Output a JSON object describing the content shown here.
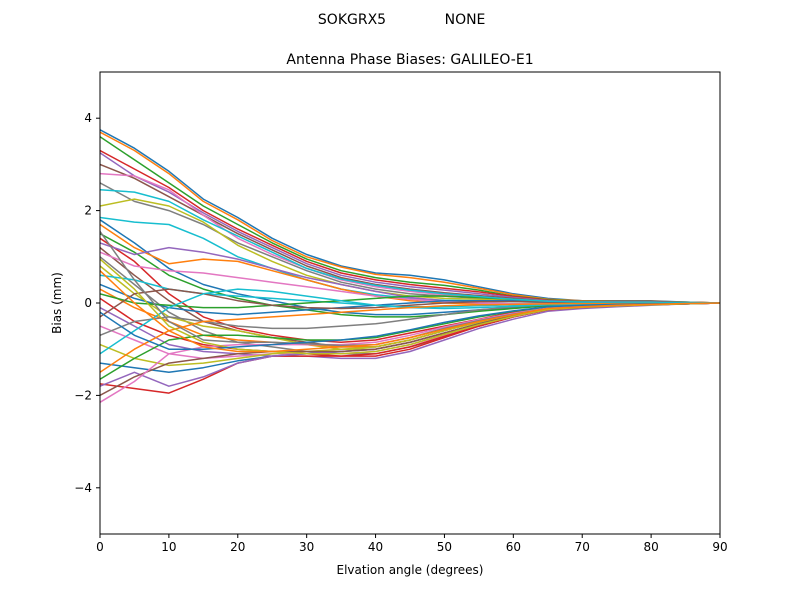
{
  "suptitle": {
    "left": "SOKGRX5",
    "right": "NONE"
  },
  "chart_data": {
    "type": "line",
    "title": "Antenna Phase Biases: GALILEO-E1",
    "xlabel": "Elvation angle (degrees)",
    "ylabel": "Bias (mm)",
    "xlim": [
      0,
      90
    ],
    "ylim": [
      -5,
      5
    ],
    "xticks": [
      0,
      10,
      20,
      30,
      40,
      50,
      60,
      70,
      80,
      90
    ],
    "xtick_labels": [
      "0",
      "10",
      "20",
      "30",
      "40",
      "50",
      "60",
      "70",
      "80",
      "90"
    ],
    "yticks": [
      -4,
      -2,
      0,
      2,
      4
    ],
    "ytick_labels": [
      "−4",
      "−2",
      "0",
      "2",
      "4"
    ],
    "grid": false,
    "legend": "none",
    "palette": [
      "#1f77b4",
      "#ff7f0e",
      "#2ca02c",
      "#d62728",
      "#9467bd",
      "#8c564b",
      "#e377c2",
      "#7f7f7f",
      "#bcbd22",
      "#17becf"
    ],
    "x": [
      0,
      5,
      10,
      15,
      20,
      25,
      30,
      35,
      40,
      45,
      50,
      55,
      60,
      65,
      70,
      75,
      80,
      85,
      90
    ],
    "series": [
      {
        "values": [
          3.75,
          3.35,
          2.85,
          2.25,
          1.85,
          1.4,
          1.05,
          0.8,
          0.65,
          0.6,
          0.5,
          0.35,
          0.2,
          0.1,
          0.05,
          0.05,
          0.05,
          0.02,
          0.0
        ]
      },
      {
        "values": [
          3.7,
          3.3,
          2.8,
          2.2,
          1.8,
          1.35,
          1.0,
          0.78,
          0.62,
          0.55,
          0.45,
          0.32,
          0.18,
          0.08,
          0.05,
          0.04,
          0.04,
          0.02,
          0.0
        ]
      },
      {
        "values": [
          3.6,
          3.1,
          2.6,
          2.1,
          1.7,
          1.3,
          0.95,
          0.7,
          0.55,
          0.45,
          0.38,
          0.28,
          0.15,
          0.07,
          0.04,
          0.03,
          0.03,
          0.02,
          0.0
        ]
      },
      {
        "values": [
          3.3,
          2.9,
          2.5,
          2.0,
          1.6,
          1.25,
          0.9,
          0.65,
          0.5,
          0.4,
          0.32,
          0.24,
          0.14,
          0.06,
          0.03,
          0.03,
          0.03,
          0.02,
          0.0
        ]
      },
      {
        "values": [
          3.25,
          2.75,
          2.4,
          1.95,
          1.55,
          1.2,
          0.85,
          0.6,
          0.45,
          0.35,
          0.28,
          0.2,
          0.12,
          0.05,
          0.03,
          0.02,
          0.02,
          0.01,
          0.0
        ]
      },
      {
        "values": [
          3.0,
          2.7,
          2.3,
          1.9,
          1.5,
          1.15,
          0.8,
          0.55,
          0.4,
          0.3,
          0.22,
          0.16,
          0.1,
          0.04,
          0.02,
          0.02,
          0.02,
          0.01,
          0.0
        ]
      },
      {
        "values": [
          2.8,
          2.75,
          2.45,
          1.9,
          1.4,
          1.05,
          0.75,
          0.5,
          0.35,
          0.25,
          0.18,
          0.13,
          0.08,
          0.04,
          0.02,
          0.02,
          0.02,
          0.01,
          0.0
        ]
      },
      {
        "values": [
          2.6,
          2.2,
          2.0,
          1.7,
          1.3,
          1.0,
          0.7,
          0.45,
          0.3,
          0.2,
          0.15,
          0.1,
          0.06,
          0.03,
          0.02,
          0.02,
          0.02,
          0.01,
          0.0
        ]
      },
      {
        "values": [
          2.1,
          2.25,
          2.1,
          1.75,
          1.25,
          0.9,
          0.6,
          0.4,
          0.25,
          0.15,
          0.1,
          0.08,
          0.05,
          0.02,
          0.01,
          0.01,
          0.01,
          0.01,
          0.0
        ]
      },
      {
        "values": [
          1.85,
          1.75,
          1.7,
          1.4,
          1.0,
          0.75,
          0.5,
          0.3,
          0.18,
          0.1,
          0.06,
          0.05,
          0.03,
          0.01,
          0.01,
          0.01,
          0.01,
          0.01,
          0.0
        ]
      },
      {
        "values": [
          1.8,
          1.3,
          0.75,
          0.4,
          0.2,
          0.05,
          -0.1,
          -0.2,
          -0.25,
          -0.25,
          -0.2,
          -0.15,
          -0.1,
          -0.05,
          -0.03,
          -0.02,
          -0.02,
          -0.01,
          0.0
        ]
      },
      {
        "values": [
          1.7,
          1.2,
          0.85,
          0.95,
          0.9,
          0.7,
          0.5,
          0.3,
          0.15,
          0.05,
          0.0,
          -0.02,
          -0.03,
          -0.03,
          -0.02,
          -0.01,
          -0.01,
          0.0,
          0.0
        ]
      },
      {
        "values": [
          1.5,
          1.1,
          0.6,
          0.3,
          0.1,
          -0.05,
          -0.15,
          -0.25,
          -0.3,
          -0.3,
          -0.25,
          -0.18,
          -0.12,
          -0.06,
          -0.04,
          -0.03,
          -0.02,
          -0.01,
          0.0
        ]
      },
      {
        "values": [
          1.4,
          0.9,
          0.2,
          -0.3,
          -0.55,
          -0.7,
          -0.8,
          -0.85,
          -0.8,
          -0.65,
          -0.5,
          -0.35,
          -0.2,
          -0.1,
          -0.06,
          -0.04,
          -0.03,
          -0.01,
          0.0
        ]
      },
      {
        "values": [
          1.3,
          1.05,
          1.2,
          1.1,
          0.95,
          0.75,
          0.55,
          0.4,
          0.25,
          0.12,
          0.05,
          0.0,
          -0.02,
          -0.02,
          -0.02,
          -0.01,
          -0.01,
          0.0,
          0.0
        ]
      },
      {
        "values": [
          1.2,
          0.6,
          0.05,
          -0.4,
          -0.6,
          -0.75,
          -0.85,
          -0.95,
          -0.95,
          -0.8,
          -0.6,
          -0.4,
          -0.25,
          -0.12,
          -0.08,
          -0.05,
          -0.03,
          -0.01,
          0.0
        ]
      },
      {
        "values": [
          1.1,
          0.8,
          0.7,
          0.65,
          0.55,
          0.45,
          0.35,
          0.25,
          0.15,
          0.08,
          0.03,
          0.0,
          -0.02,
          -0.02,
          -0.02,
          -0.01,
          -0.01,
          0.0,
          0.0
        ]
      },
      {
        "values": [
          1.0,
          0.4,
          -0.2,
          -0.6,
          -0.85,
          -0.95,
          -1.05,
          -1.1,
          -1.1,
          -0.95,
          -0.75,
          -0.5,
          -0.3,
          -0.15,
          -0.1,
          -0.06,
          -0.04,
          -0.02,
          0.0
        ]
      },
      {
        "values": [
          0.8,
          0.2,
          -0.3,
          -0.5,
          -0.6,
          -0.75,
          -0.9,
          -1.0,
          -1.0,
          -0.85,
          -0.65,
          -0.45,
          -0.28,
          -0.14,
          -0.09,
          -0.05,
          -0.03,
          -0.01,
          0.0
        ]
      },
      {
        "values": [
          0.6,
          0.5,
          0.3,
          0.2,
          0.15,
          0.1,
          0.05,
          0.0,
          -0.05,
          -0.08,
          -0.08,
          -0.06,
          -0.04,
          -0.03,
          -0.02,
          -0.01,
          -0.01,
          0.0,
          0.0
        ]
      },
      {
        "values": [
          0.4,
          0.1,
          -0.1,
          -0.2,
          -0.25,
          -0.2,
          -0.15,
          -0.1,
          -0.05,
          0.0,
          0.05,
          0.05,
          0.05,
          0.03,
          0.02,
          0.01,
          0.01,
          0.0,
          0.0
        ]
      },
      {
        "values": [
          0.3,
          -0.1,
          -0.4,
          -0.7,
          -0.8,
          -0.85,
          -0.9,
          -0.95,
          -0.95,
          -0.8,
          -0.6,
          -0.4,
          -0.25,
          -0.12,
          -0.08,
          -0.05,
          -0.03,
          -0.01,
          0.0
        ]
      },
      {
        "values": [
          0.2,
          0.0,
          -0.05,
          -0.1,
          -0.1,
          -0.05,
          0.0,
          0.05,
          0.1,
          0.15,
          0.15,
          0.12,
          0.08,
          0.04,
          0.02,
          0.01,
          0.01,
          0.0,
          0.0
        ]
      },
      {
        "values": [
          0.1,
          -0.4,
          -0.7,
          -0.9,
          -1.0,
          -1.05,
          -1.1,
          -1.15,
          -1.15,
          -1.0,
          -0.75,
          -0.5,
          -0.3,
          -0.15,
          -0.1,
          -0.06,
          -0.04,
          -0.02,
          0.0
        ]
      },
      {
        "values": [
          -0.1,
          -0.5,
          -0.9,
          -1.05,
          -1.1,
          -1.15,
          -1.15,
          -1.2,
          -1.2,
          -1.05,
          -0.8,
          -0.55,
          -0.35,
          -0.18,
          -0.12,
          -0.08,
          -0.05,
          -0.02,
          0.0
        ]
      },
      {
        "values": [
          -0.3,
          0.2,
          0.3,
          0.2,
          0.05,
          -0.05,
          -0.1,
          -0.12,
          -0.1,
          -0.05,
          0.0,
          0.03,
          0.03,
          0.02,
          0.01,
          0.01,
          0.01,
          0.0,
          0.0
        ]
      },
      {
        "values": [
          -0.5,
          -0.8,
          -1.1,
          -1.2,
          -1.15,
          -1.1,
          -1.1,
          -1.1,
          -1.05,
          -0.9,
          -0.7,
          -0.48,
          -0.3,
          -0.15,
          -0.1,
          -0.06,
          -0.04,
          -0.02,
          0.0
        ]
      },
      {
        "values": [
          -0.7,
          -0.4,
          -0.3,
          -0.4,
          -0.5,
          -0.55,
          -0.55,
          -0.5,
          -0.45,
          -0.35,
          -0.25,
          -0.15,
          -0.08,
          -0.04,
          -0.03,
          -0.02,
          -0.01,
          0.0,
          0.0
        ]
      },
      {
        "values": [
          -0.9,
          -1.2,
          -1.35,
          -1.3,
          -1.2,
          -1.1,
          -1.05,
          -1.0,
          -0.95,
          -0.8,
          -0.6,
          -0.42,
          -0.27,
          -0.14,
          -0.09,
          -0.05,
          -0.03,
          -0.01,
          0.0
        ]
      },
      {
        "values": [
          -1.1,
          -0.6,
          -0.1,
          0.2,
          0.3,
          0.25,
          0.15,
          0.05,
          -0.05,
          -0.1,
          -0.12,
          -0.1,
          -0.07,
          -0.04,
          -0.03,
          -0.02,
          -0.01,
          0.0,
          0.0
        ]
      },
      {
        "values": [
          -1.3,
          -1.4,
          -1.5,
          -1.4,
          -1.25,
          -1.15,
          -1.1,
          -1.05,
          -1.0,
          -0.85,
          -0.65,
          -0.45,
          -0.28,
          -0.14,
          -0.1,
          -0.06,
          -0.04,
          -0.02,
          0.0
        ]
      },
      {
        "values": [
          -1.5,
          -1.0,
          -0.6,
          -0.4,
          -0.35,
          -0.3,
          -0.25,
          -0.2,
          -0.15,
          -0.1,
          -0.06,
          -0.04,
          -0.03,
          -0.02,
          -0.01,
          -0.01,
          0.0,
          0.0,
          0.0
        ]
      },
      {
        "values": [
          -1.65,
          -1.2,
          -0.8,
          -0.7,
          -0.7,
          -0.75,
          -0.8,
          -0.8,
          -0.75,
          -0.6,
          -0.45,
          -0.3,
          -0.18,
          -0.09,
          -0.06,
          -0.04,
          -0.03,
          -0.01,
          0.0
        ]
      },
      {
        "values": [
          -1.75,
          -1.85,
          -1.95,
          -1.65,
          -1.3,
          -1.15,
          -1.15,
          -1.15,
          -1.1,
          -0.95,
          -0.72,
          -0.5,
          -0.3,
          -0.15,
          -0.1,
          -0.06,
          -0.04,
          -0.02,
          0.0
        ]
      },
      {
        "values": [
          -1.8,
          -1.5,
          -1.8,
          -1.6,
          -1.3,
          -1.15,
          -1.1,
          -1.05,
          -1.0,
          -0.85,
          -0.65,
          -0.46,
          -0.29,
          -0.14,
          -0.1,
          -0.06,
          -0.04,
          -0.02,
          0.0
        ]
      },
      {
        "values": [
          -2.0,
          -1.6,
          -1.3,
          -1.2,
          -1.1,
          -1.05,
          -1.05,
          -1.05,
          -1.0,
          -0.85,
          -0.65,
          -0.45,
          -0.28,
          -0.14,
          -0.09,
          -0.06,
          -0.04,
          -0.02,
          0.0
        ]
      },
      {
        "values": [
          -2.15,
          -1.7,
          -1.1,
          -0.95,
          -0.9,
          -0.9,
          -0.9,
          -0.9,
          -0.85,
          -0.7,
          -0.52,
          -0.36,
          -0.22,
          -0.11,
          -0.07,
          -0.05,
          -0.03,
          -0.01,
          0.0
        ]
      },
      {
        "values": [
          1.55,
          0.5,
          -0.4,
          -0.8,
          -0.85,
          -0.85,
          -0.88,
          -0.92,
          -0.9,
          -0.75,
          -0.55,
          -0.38,
          -0.24,
          -0.12,
          -0.08,
          -0.05,
          -0.03,
          -0.01,
          0.0
        ]
      },
      {
        "values": [
          0.95,
          0.3,
          -0.5,
          -0.85,
          -1.0,
          -1.05,
          -1.1,
          -1.1,
          -1.05,
          -0.9,
          -0.68,
          -0.47,
          -0.29,
          -0.14,
          -0.09,
          -0.06,
          -0.04,
          -0.02,
          0.0
        ]
      },
      {
        "values": [
          2.45,
          2.4,
          2.2,
          1.8,
          1.45,
          1.1,
          0.75,
          0.52,
          0.38,
          0.28,
          0.2,
          0.14,
          0.08,
          0.04,
          0.02,
          0.02,
          0.02,
          0.01,
          0.0
        ]
      },
      {
        "values": [
          -0.2,
          -0.7,
          -1.0,
          -1.0,
          -0.95,
          -0.9,
          -0.85,
          -0.8,
          -0.72,
          -0.58,
          -0.42,
          -0.28,
          -0.17,
          -0.08,
          -0.05,
          -0.03,
          -0.02,
          -0.01,
          0.0
        ]
      },
      {
        "values": [
          0.7,
          0.0,
          -0.6,
          -0.95,
          -1.05,
          -1.05,
          -1.0,
          -0.95,
          -0.9,
          -0.75,
          -0.57,
          -0.4,
          -0.25,
          -0.12,
          -0.08,
          -0.05,
          -0.03,
          -0.01,
          0.0
        ]
      }
    ]
  }
}
